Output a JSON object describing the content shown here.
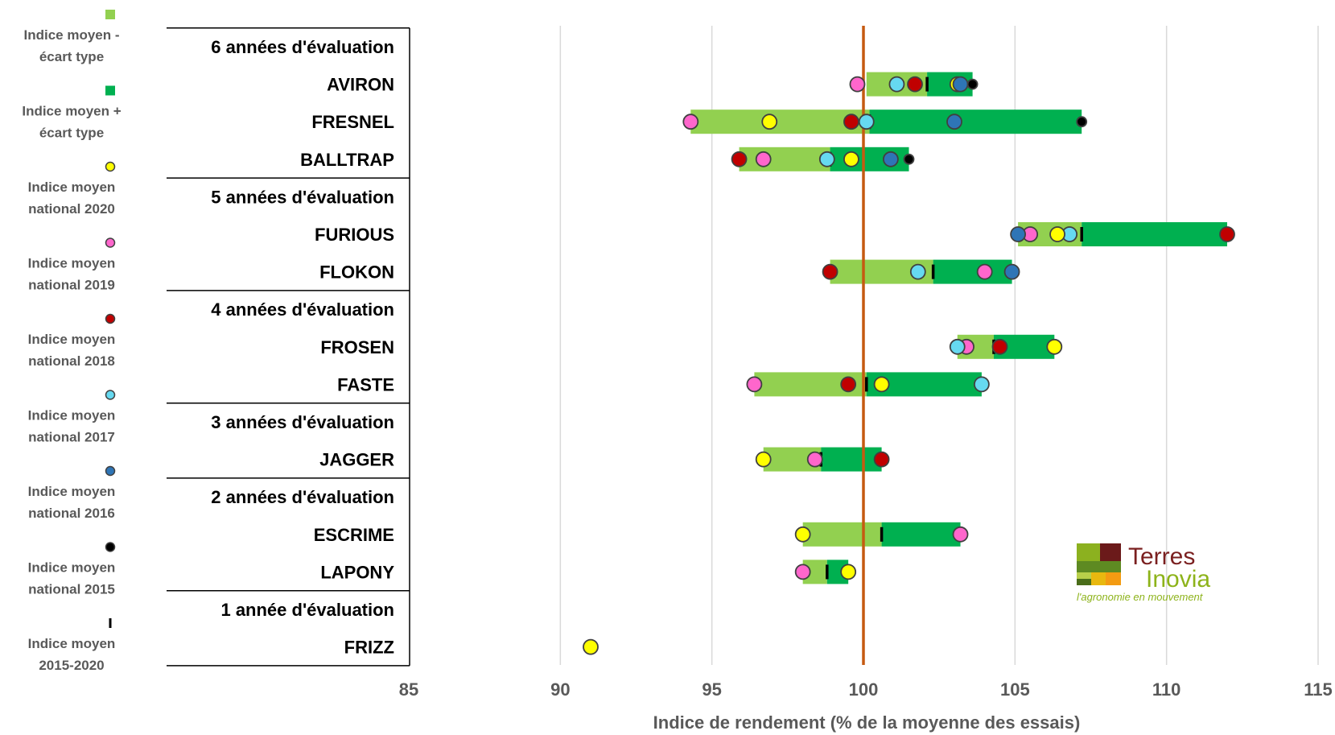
{
  "chart_data": {
    "type": "range-dot",
    "xlabel": "Indice de rendement (% de la moyenne des essais)",
    "xlim": [
      85,
      115
    ],
    "xticks": [
      85,
      90,
      95,
      100,
      105,
      110,
      115
    ],
    "grid": true,
    "reference_line": 100,
    "legend_position": "left",
    "colors": {
      "minus_sd": "#92d050",
      "plus_sd": "#00b050",
      "y2020": "#ffff00",
      "y2019": "#ff66cc",
      "y2018": "#c00000",
      "y2017": "#66d9f0",
      "y2016": "#2e75b6",
      "y2015": "#000000",
      "reference": "#c55a11",
      "gridline": "#d9d9d9"
    },
    "legend": [
      {
        "key": "minus_sd",
        "symbol": "square",
        "label": [
          "Indice moyen -",
          "écart type"
        ]
      },
      {
        "key": "plus_sd",
        "symbol": "square",
        "label": [
          "Indice moyen +",
          "écart type"
        ]
      },
      {
        "key": "y2020",
        "symbol": "circle",
        "label": [
          "Indice moyen",
          "national 2020"
        ]
      },
      {
        "key": "y2019",
        "symbol": "circle",
        "label": [
          "Indice moyen",
          "national 2019"
        ]
      },
      {
        "key": "y2018",
        "symbol": "circle",
        "label": [
          "Indice moyen",
          "national 2018"
        ]
      },
      {
        "key": "y2017",
        "symbol": "circle",
        "label": [
          "Indice moyen",
          "national 2017"
        ]
      },
      {
        "key": "y2016",
        "symbol": "circle",
        "label": [
          "Indice moyen",
          "national 2016"
        ]
      },
      {
        "key": "y2015",
        "symbol": "circle",
        "label": [
          "Indice moyen",
          "national 2015"
        ]
      },
      {
        "key": "mean",
        "symbol": "dash",
        "label": [
          "Indice moyen",
          "2015-2020"
        ]
      }
    ],
    "groups": [
      {
        "title": "6 années d'évaluation",
        "varieties": [
          {
            "name": "AVIRON",
            "low": 100.1,
            "mean": 102.1,
            "high": 103.6,
            "y2015": 103.6,
            "y2016": 103.2,
            "y2017": 101.1,
            "y2018": 101.7,
            "y2019": 99.8,
            "y2020": 103.1
          },
          {
            "name": "FRESNEL",
            "low": 94.3,
            "mean": 100.2,
            "high": 107.2,
            "y2015": 107.2,
            "y2016": 103.0,
            "y2017": 100.1,
            "y2018": 99.6,
            "y2019": 94.3,
            "y2020": 96.9
          },
          {
            "name": "BALLTRAP",
            "low": 95.9,
            "mean": 98.9,
            "high": 101.5,
            "y2015": 101.5,
            "y2016": 100.9,
            "y2017": 98.8,
            "y2018": 95.9,
            "y2019": 96.7,
            "y2020": 99.6
          }
        ]
      },
      {
        "title": "5 années d'évaluation",
        "varieties": [
          {
            "name": "FURIOUS",
            "low": 105.1,
            "mean": 107.2,
            "high": 112.0,
            "y2016": 105.1,
            "y2017": 106.8,
            "y2018": 112.0,
            "y2019": 105.5,
            "y2020": 106.4
          },
          {
            "name": "FLOKON",
            "low": 98.9,
            "mean": 102.3,
            "high": 104.9,
            "y2016": 104.9,
            "y2017": 101.8,
            "y2018": 98.9,
            "y2019": 104.0
          }
        ]
      },
      {
        "title": "4 années d'évaluation",
        "varieties": [
          {
            "name": "FROSEN",
            "low": 103.1,
            "mean": 104.3,
            "high": 106.3,
            "y2017": 103.1,
            "y2018": 104.5,
            "y2019": 103.4,
            "y2020": 106.3
          },
          {
            "name": "FASTE",
            "low": 96.4,
            "mean": 100.1,
            "high": 103.9,
            "y2017": 103.9,
            "y2018": 99.5,
            "y2019": 96.4,
            "y2020": 100.6
          }
        ]
      },
      {
        "title": "3 années d'évaluation",
        "varieties": [
          {
            "name": "JAGGER",
            "low": 96.7,
            "mean": 98.6,
            "high": 100.6,
            "y2018": 100.6,
            "y2019": 98.4,
            "y2020": 96.7
          }
        ]
      },
      {
        "title": "2 années d'évaluation",
        "varieties": [
          {
            "name": "ESCRIME",
            "low": 98.0,
            "mean": 100.6,
            "high": 103.2,
            "y2019": 103.2,
            "y2020": 98.0
          },
          {
            "name": "LAPONY",
            "low": 98.0,
            "mean": 98.8,
            "high": 99.5,
            "y2019": 98.0,
            "y2020": 99.5
          }
        ]
      },
      {
        "title": "1 année d'évaluation",
        "varieties": [
          {
            "name": "FRIZZ",
            "y2020": 91.0
          }
        ]
      }
    ]
  },
  "logo": {
    "line1": "Terres",
    "line2": "Inovia",
    "tagline": "l'agronomie en mouvement"
  }
}
